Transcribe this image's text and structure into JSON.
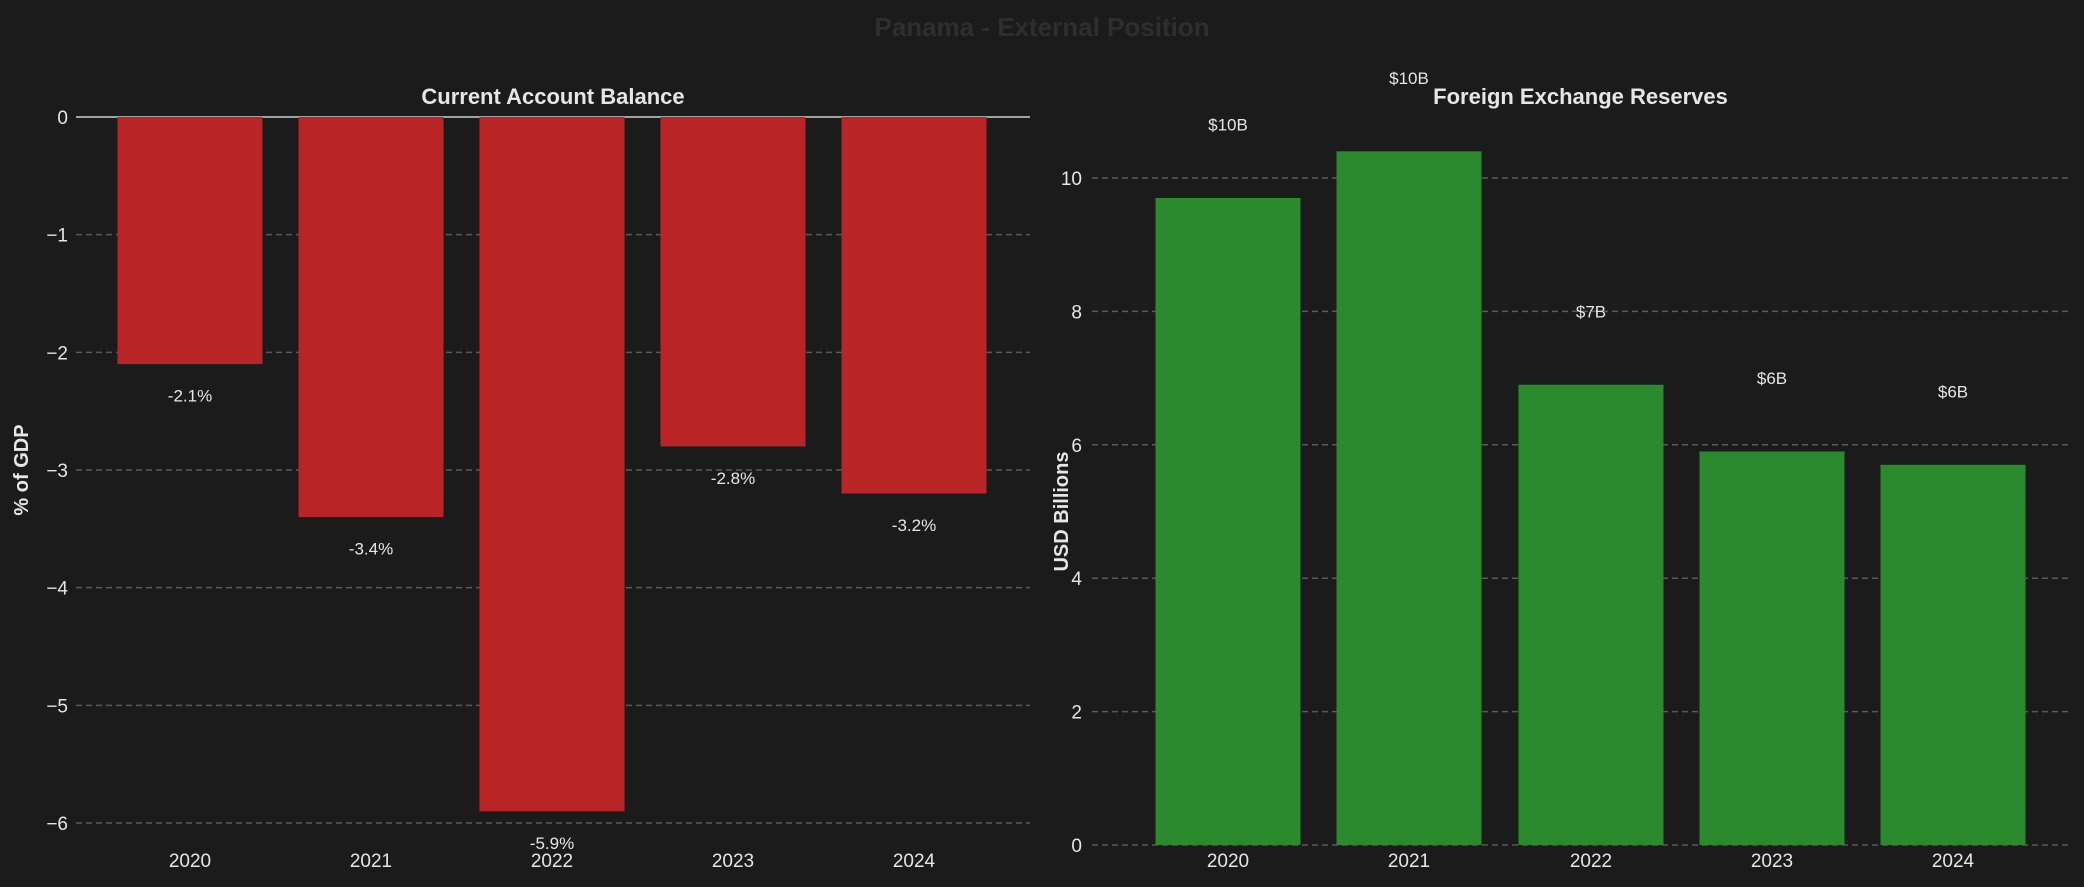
{
  "suptitle": "Panama - External Position",
  "colors": {
    "background": "#1b1b1b",
    "negative_bar": "#b92527",
    "reserve_bar": "#2b8a2d",
    "text": "#e6e6e6",
    "grid": "#5a5a5a",
    "suptitle": "#2e2e2e"
  },
  "chart_data": [
    {
      "type": "bar",
      "title": "Current Account Balance",
      "xlabel": "",
      "ylabel": "% of GDP",
      "categories": [
        "2020",
        "2021",
        "2022",
        "2023",
        "2024"
      ],
      "values": [
        -2.1,
        -3.4,
        -5.9,
        -2.8,
        -3.2
      ],
      "data_labels": [
        "-2.1%",
        "-3.4%",
        "-5.9%",
        "-2.8%",
        "-3.2%"
      ],
      "ylim": [
        -6.3,
        0
      ],
      "yticks": [
        0,
        -1,
        -2,
        -3,
        -4,
        -5,
        -6
      ],
      "ytick_labels": [
        "0",
        "−1",
        "−2",
        "−3",
        "−4",
        "−5",
        "−6"
      ],
      "grid": true
    },
    {
      "type": "bar",
      "title": "Foreign Exchange Reserves",
      "xlabel": "",
      "ylabel": "USD Billions",
      "categories": [
        "2020",
        "2021",
        "2022",
        "2023",
        "2024"
      ],
      "values": [
        9.7,
        10.4,
        6.9,
        5.9,
        5.7
      ],
      "data_labels": [
        "$10B",
        "$10B",
        "$7B",
        "$6B",
        "$6B"
      ],
      "ylim": [
        0,
        11
      ],
      "yticks": [
        0,
        2,
        4,
        6,
        8,
        10
      ],
      "ytick_labels": [
        "0",
        "2",
        "4",
        "6",
        "8",
        "10"
      ],
      "grid": true
    }
  ]
}
